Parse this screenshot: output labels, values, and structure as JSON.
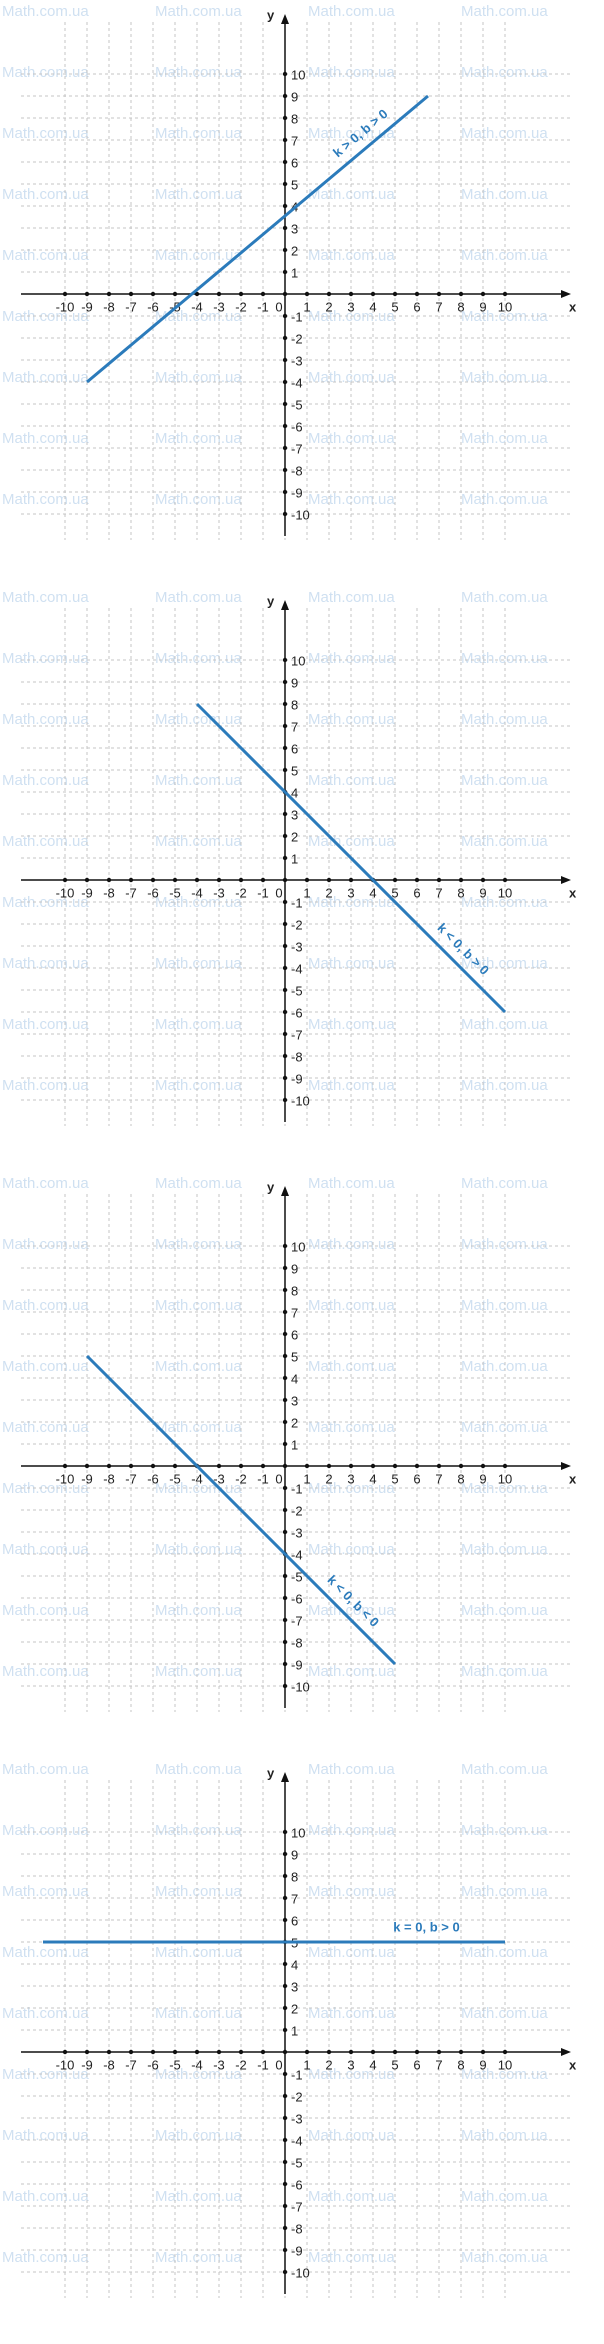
{
  "watermark": "Math.com.ua",
  "chart_data": [
    {
      "type": "line",
      "x_label": "x",
      "y_label": "y",
      "xlim": [
        -12,
        13
      ],
      "ylim": [
        -11,
        12
      ],
      "xticks": [
        -10,
        -9,
        -8,
        -7,
        -6,
        -5,
        -4,
        -3,
        -2,
        -1,
        0,
        1,
        2,
        3,
        4,
        5,
        6,
        7,
        8,
        9,
        10
      ],
      "yticks": [
        -10,
        -9,
        -8,
        -7,
        -6,
        -5,
        -4,
        -3,
        -2,
        -1,
        1,
        2,
        3,
        4,
        5,
        6,
        7,
        8,
        9,
        10
      ],
      "grid": true,
      "x": [
        -9,
        6.5
      ],
      "series": [
        {
          "name": "k > 0, b > 0",
          "color": "#2b7bbb",
          "values": [
            -4,
            9
          ]
        }
      ]
    },
    {
      "type": "line",
      "x_label": "x",
      "y_label": "y",
      "xlim": [
        -12,
        13
      ],
      "ylim": [
        -11,
        12
      ],
      "xticks": [
        -10,
        -9,
        -8,
        -7,
        -6,
        -5,
        -4,
        -3,
        -2,
        -1,
        0,
        1,
        2,
        3,
        4,
        5,
        6,
        7,
        8,
        9,
        10
      ],
      "yticks": [
        -10,
        -9,
        -8,
        -7,
        -6,
        -5,
        -4,
        -3,
        -2,
        -1,
        1,
        2,
        3,
        4,
        5,
        6,
        7,
        8,
        9,
        10
      ],
      "grid": true,
      "x": [
        -4,
        10
      ],
      "series": [
        {
          "name": "k < 0, b > 0",
          "color": "#2b7bbb",
          "values": [
            8,
            -6
          ]
        }
      ]
    },
    {
      "type": "line",
      "x_label": "x",
      "y_label": "y",
      "xlim": [
        -12,
        13
      ],
      "ylim": [
        -11,
        12
      ],
      "xticks": [
        -10,
        -9,
        -8,
        -7,
        -6,
        -5,
        -4,
        -3,
        -2,
        -1,
        0,
        1,
        2,
        3,
        4,
        5,
        6,
        7,
        8,
        9,
        10
      ],
      "yticks": [
        -10,
        -9,
        -8,
        -7,
        -6,
        -5,
        -4,
        -3,
        -2,
        -1,
        1,
        2,
        3,
        4,
        5,
        6,
        7,
        8,
        9,
        10
      ],
      "grid": true,
      "x": [
        -9,
        5
      ],
      "series": [
        {
          "name": "k < 0, b < 0",
          "color": "#2b7bbb",
          "values": [
            5,
            -9
          ]
        }
      ]
    },
    {
      "type": "line",
      "x_label": "x",
      "y_label": "y",
      "xlim": [
        -12,
        13
      ],
      "ylim": [
        -11,
        12
      ],
      "xticks": [
        -10,
        -9,
        -8,
        -7,
        -6,
        -5,
        -4,
        -3,
        -2,
        -1,
        0,
        1,
        2,
        3,
        4,
        5,
        6,
        7,
        8,
        9,
        10
      ],
      "yticks": [
        -10,
        -9,
        -8,
        -7,
        -6,
        -5,
        -4,
        -3,
        -2,
        -1,
        1,
        2,
        3,
        4,
        5,
        6,
        7,
        8,
        9,
        10
      ],
      "grid": true,
      "x": [
        -11,
        10
      ],
      "series": [
        {
          "name": "k = 0, b > 0",
          "color": "#2b7bbb",
          "values": [
            5,
            5
          ]
        }
      ]
    }
  ]
}
